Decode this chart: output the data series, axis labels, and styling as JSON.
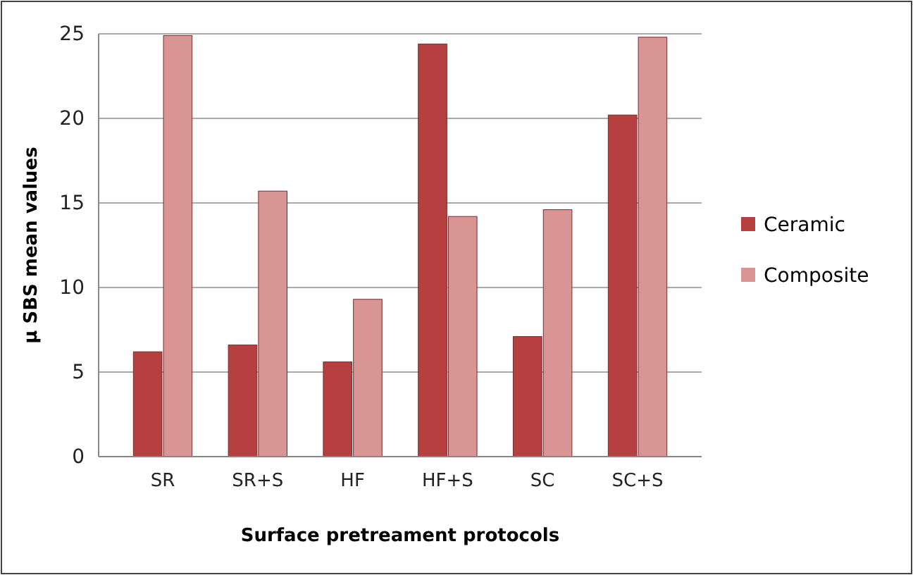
{
  "chart_data": {
    "type": "bar",
    "xlabel": "Surface pretreament protocols",
    "ylabel": "µ SBS mean values",
    "categories": [
      "SR",
      "SR+S",
      "HF",
      "HF+S",
      "SC",
      "SC+S"
    ],
    "series": [
      {
        "name": "Ceramic",
        "color": "#b5403f",
        "values": [
          6.2,
          6.6,
          5.6,
          24.4,
          7.1,
          20.2
        ]
      },
      {
        "name": "Composite",
        "color": "#d99594",
        "values": [
          24.9,
          15.7,
          9.3,
          14.2,
          14.6,
          24.8
        ]
      }
    ],
    "ylim": [
      0,
      25
    ],
    "yticks": [
      0,
      5,
      10,
      15,
      20,
      25
    ],
    "grid": true,
    "legend": "right"
  }
}
